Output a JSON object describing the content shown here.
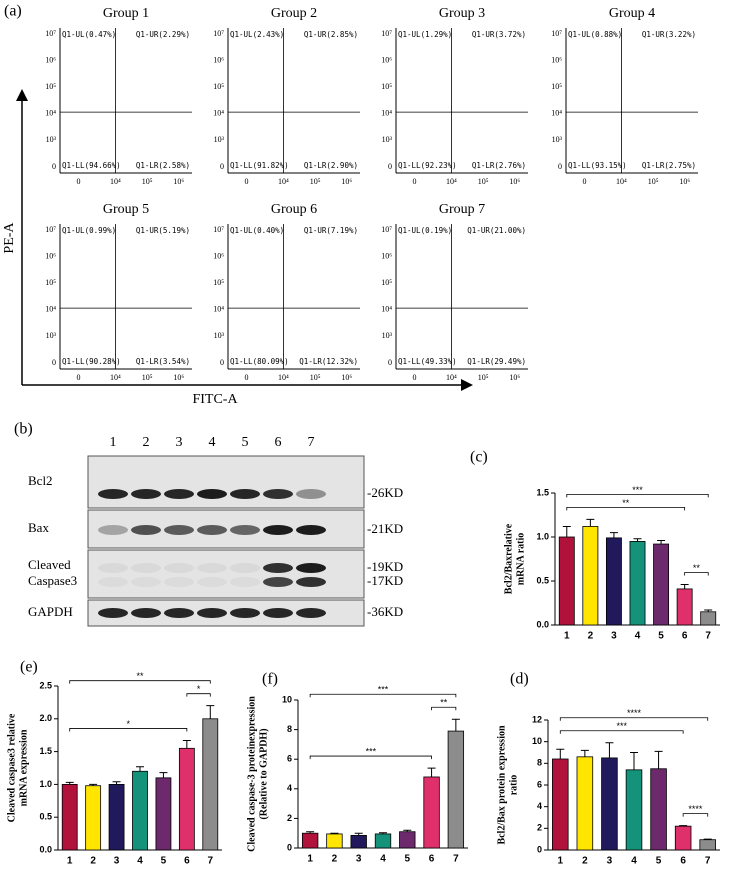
{
  "flow": {
    "label": "(a)",
    "y_axis": "PE-A",
    "x_axis": "FITC-A",
    "y_ticks": [
      "10⁷",
      "10⁶",
      "10⁵",
      "10⁴",
      "10³",
      "0"
    ],
    "x_ticks": [
      "0",
      "10⁴",
      "10⁵",
      "10⁶"
    ],
    "groups": [
      {
        "title": "Group 1",
        "quadrants": [
          "Q1-UL(0.47%)",
          "Q1-UR(2.29%)",
          "Q1-LL(94.66%)",
          "Q1-LR(2.58%)"
        ]
      },
      {
        "title": "Group 2",
        "quadrants": [
          "Q1-UL(2.43%)",
          "Q1-UR(2.85%)",
          "Q1-LL(91.82%)",
          "Q1-LR(2.90%)"
        ]
      },
      {
        "title": "Group 3",
        "quadrants": [
          "Q1-UL(1.29%)",
          "Q1-UR(3.72%)",
          "Q1-LL(92.23%)",
          "Q1-LR(2.76%)"
        ]
      },
      {
        "title": "Group 4",
        "quadrants": [
          "Q1-UL(0.88%)",
          "Q1-UR(3.22%)",
          "Q1-LL(93.15%)",
          "Q1-LR(2.75%)"
        ]
      },
      {
        "title": "Group 5",
        "quadrants": [
          "Q1-UL(0.99%)",
          "Q1-UR(5.19%)",
          "Q1-LL(90.28%)",
          "Q1-LR(3.54%)"
        ]
      },
      {
        "title": "Group 6",
        "quadrants": [
          "Q1-UL(0.40%)",
          "Q1-UR(7.19%)",
          "Q1-LL(80.09%)",
          "Q1-LR(12.32%)"
        ]
      },
      {
        "title": "Group 7",
        "quadrants": [
          "Q1-UL(0.19%)",
          "Q1-UR(21.00%)",
          "Q1-LL(49.33%)",
          "Q1-LR(29.49%)"
        ]
      }
    ]
  },
  "western": {
    "label": "(b)",
    "lanes": [
      "1",
      "2",
      "3",
      "4",
      "5",
      "6",
      "7"
    ],
    "rows": [
      {
        "name": [
          "Bcl2"
        ],
        "sizes": [
          "-26KD"
        ]
      },
      {
        "name": [
          "Bax"
        ],
        "sizes": [
          "-21KD"
        ]
      },
      {
        "name": [
          "Cleaved",
          "Caspase3"
        ],
        "sizes": [
          "-19KD",
          "-17KD"
        ]
      },
      {
        "name": [
          "GAPDH"
        ],
        "sizes": [
          "-36KD"
        ]
      }
    ]
  },
  "chart_data": [
    {
      "type": "bar",
      "label": "(c)",
      "y_label": [
        "Bcl2/Baxrelative",
        "mRNA ratio"
      ],
      "categories": [
        "1",
        "2",
        "3",
        "4",
        "5",
        "6",
        "7"
      ],
      "values": [
        1.0,
        1.12,
        0.99,
        0.95,
        0.92,
        0.41,
        0.15
      ],
      "errors": [
        0.12,
        0.08,
        0.06,
        0.03,
        0.04,
        0.05,
        0.02
      ],
      "colors": [
        "#b0123c",
        "#ffe500",
        "#201a5c",
        "#14937a",
        "#6c2a6c",
        "#e0306c",
        "#8c8c8c"
      ],
      "ylim": [
        0,
        1.5
      ],
      "yticks": [
        {
          "value": 0,
          "label": "0.0"
        },
        0.5,
        {
          "value": 1,
          "label": "1.0"
        },
        1.5
      ],
      "significance": [
        {
          "label": "***",
          "between": [
            "1",
            "7"
          ]
        },
        {
          "label": "**",
          "between": [
            "1",
            "6"
          ]
        },
        {
          "label": "**",
          "between": [
            "6",
            "7"
          ]
        }
      ]
    },
    {
      "type": "bar",
      "label": "(e)",
      "y_label": [
        "Cleaved caspase3 relative",
        "mRNA expression"
      ],
      "categories": [
        "1",
        "2",
        "3",
        "4",
        "5",
        "6",
        "7"
      ],
      "values": [
        1.0,
        0.98,
        1.0,
        1.2,
        1.1,
        1.55,
        2.0
      ],
      "errors": [
        0.03,
        0.02,
        0.04,
        0.07,
        0.08,
        0.12,
        0.2
      ],
      "colors": [
        "#b0123c",
        "#ffe500",
        "#201a5c",
        "#14937a",
        "#6c2a6c",
        "#e0306c",
        "#8c8c8c"
      ],
      "ylim": [
        0,
        2.5
      ],
      "yticks": [
        {
          "value": 0,
          "label": "0.0"
        },
        0.5,
        {
          "value": 1,
          "label": "1.0"
        },
        1.5,
        {
          "value": 2,
          "label": "2.0"
        },
        2.5
      ],
      "significance": [
        {
          "label": "**",
          "between": [
            "1",
            "7"
          ]
        },
        {
          "label": "*",
          "between": [
            "1",
            "6"
          ]
        },
        {
          "label": "*",
          "between": [
            "6",
            "7"
          ]
        }
      ]
    },
    {
      "type": "bar",
      "label": "(f)",
      "y_label": [
        "Cleaved caspase-3 proteinexpression",
        "(Relative to GAPDH)"
      ],
      "categories": [
        "1",
        "2",
        "3",
        "4",
        "5",
        "6",
        "7"
      ],
      "values": [
        1.0,
        0.95,
        0.85,
        0.95,
        1.1,
        4.8,
        7.9
      ],
      "errors": [
        0.1,
        0.05,
        0.15,
        0.08,
        0.1,
        0.6,
        0.8
      ],
      "colors": [
        "#b0123c",
        "#ffe500",
        "#201a5c",
        "#14937a",
        "#6c2a6c",
        "#e0306c",
        "#8c8c8c"
      ],
      "ylim": [
        0,
        10
      ],
      "yticks": [
        0,
        2,
        4,
        6,
        8,
        10
      ],
      "significance": [
        {
          "label": "***",
          "between": [
            "1",
            "7"
          ]
        },
        {
          "label": "***",
          "between": [
            "1",
            "6"
          ]
        },
        {
          "label": "**",
          "between": [
            "6",
            "7"
          ]
        }
      ]
    },
    {
      "type": "bar",
      "label": "(d)",
      "y_label": [
        "Bcl2/Bax protein expression",
        "ratio"
      ],
      "categories": [
        "1",
        "2",
        "3",
        "4",
        "5",
        "6",
        "7"
      ],
      "values": [
        8.4,
        8.6,
        8.5,
        7.4,
        7.5,
        2.2,
        0.95
      ],
      "errors": [
        0.9,
        0.6,
        1.4,
        1.6,
        1.6,
        0.05,
        0.05
      ],
      "colors": [
        "#b0123c",
        "#ffe500",
        "#201a5c",
        "#14937a",
        "#6c2a6c",
        "#e0306c",
        "#8c8c8c"
      ],
      "ylim": [
        0,
        12
      ],
      "yticks": [
        0,
        2,
        4,
        6,
        8,
        10,
        12
      ],
      "significance": [
        {
          "label": "****",
          "between": [
            "1",
            "7"
          ]
        },
        {
          "label": "***",
          "between": [
            "1",
            "6"
          ]
        },
        {
          "label": "****",
          "between": [
            "6",
            "7"
          ]
        }
      ]
    }
  ]
}
